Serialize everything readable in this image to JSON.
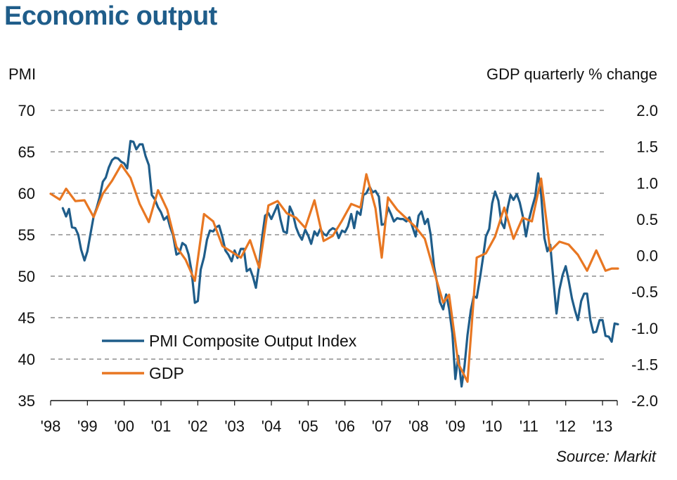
{
  "page": {
    "title": "Economic output",
    "source": "Source: Markit"
  },
  "chart_data": {
    "type": "line",
    "title": "Economic output",
    "left_axis": {
      "label": "PMI",
      "ticks": [
        35,
        40,
        45,
        50,
        55,
        60,
        65,
        70
      ],
      "range": [
        35,
        70
      ]
    },
    "right_axis": {
      "label": "GDP quarterly % change",
      "ticks": [
        "-2.0",
        "-1.5",
        "-1.0",
        "-0.5",
        "0.0",
        "0.5",
        "1.0",
        "1.5",
        "2.0"
      ],
      "range": [
        -2.0,
        2.0
      ]
    },
    "x_axis": {
      "ticks": [
        "'98",
        "'99",
        "'00",
        "'01",
        "'02",
        "'03",
        "'04",
        "'05",
        "'06",
        "'07",
        "'08",
        "'09",
        "'10",
        "'11",
        "'12",
        "'13"
      ],
      "range": [
        1998.0,
        2013.4
      ]
    },
    "grid": "horizontal dashed",
    "legend_position": "bottom-left",
    "series": [
      {
        "name": "PMI Composite Output Index",
        "axis": "left",
        "color": "#1f5d8a",
        "points": [
          [
            1998.33,
            58.2
          ],
          [
            1998.42,
            57.2
          ],
          [
            1998.5,
            58.1
          ],
          [
            1998.58,
            55.9
          ],
          [
            1998.67,
            55.8
          ],
          [
            1998.75,
            55.0
          ],
          [
            1998.83,
            53.2
          ],
          [
            1998.92,
            51.9
          ],
          [
            1999.0,
            53.0
          ],
          [
            1999.08,
            55.0
          ],
          [
            1999.17,
            57.2
          ],
          [
            1999.25,
            58.2
          ],
          [
            1999.33,
            59.5
          ],
          [
            1999.42,
            61.4
          ],
          [
            1999.5,
            61.9
          ],
          [
            1999.58,
            63.1
          ],
          [
            1999.67,
            64.0
          ],
          [
            1999.75,
            64.3
          ],
          [
            1999.83,
            64.2
          ],
          [
            1999.92,
            63.8
          ],
          [
            2000.0,
            63.6
          ],
          [
            2000.08,
            63.0
          ],
          [
            2000.17,
            66.3
          ],
          [
            2000.25,
            66.2
          ],
          [
            2000.33,
            65.3
          ],
          [
            2000.42,
            65.9
          ],
          [
            2000.5,
            65.9
          ],
          [
            2000.58,
            64.5
          ],
          [
            2000.67,
            63.4
          ],
          [
            2000.75,
            59.8
          ],
          [
            2000.83,
            59.3
          ],
          [
            2000.92,
            58.3
          ],
          [
            2001.0,
            57.7
          ],
          [
            2001.08,
            56.8
          ],
          [
            2001.17,
            57.2
          ],
          [
            2001.25,
            55.9
          ],
          [
            2001.33,
            54.9
          ],
          [
            2001.42,
            52.6
          ],
          [
            2001.5,
            52.8
          ],
          [
            2001.58,
            54.0
          ],
          [
            2001.67,
            53.7
          ],
          [
            2001.75,
            52.6
          ],
          [
            2001.83,
            50.6
          ],
          [
            2001.92,
            46.8
          ],
          [
            2002.0,
            47.0
          ],
          [
            2002.08,
            50.8
          ],
          [
            2002.17,
            52.3
          ],
          [
            2002.25,
            54.4
          ],
          [
            2002.33,
            55.5
          ],
          [
            2002.42,
            55.4
          ],
          [
            2002.5,
            55.9
          ],
          [
            2002.58,
            56.1
          ],
          [
            2002.67,
            54.7
          ],
          [
            2002.75,
            53.1
          ],
          [
            2002.83,
            52.6
          ],
          [
            2002.92,
            51.8
          ],
          [
            2003.0,
            53.1
          ],
          [
            2003.08,
            52.2
          ],
          [
            2003.17,
            53.3
          ],
          [
            2003.25,
            53.3
          ],
          [
            2003.33,
            50.6
          ],
          [
            2003.42,
            50.9
          ],
          [
            2003.5,
            49.9
          ],
          [
            2003.58,
            48.6
          ],
          [
            2003.67,
            51.5
          ],
          [
            2003.75,
            54.7
          ],
          [
            2003.83,
            57.3
          ],
          [
            2003.92,
            57.6
          ],
          [
            2004.0,
            56.9
          ],
          [
            2004.08,
            57.7
          ],
          [
            2004.17,
            58.6
          ],
          [
            2004.25,
            56.8
          ],
          [
            2004.33,
            55.4
          ],
          [
            2004.42,
            55.2
          ],
          [
            2004.5,
            58.4
          ],
          [
            2004.58,
            57.6
          ],
          [
            2004.67,
            55.9
          ],
          [
            2004.75,
            55.0
          ],
          [
            2004.83,
            54.4
          ],
          [
            2004.92,
            55.6
          ],
          [
            2005.0,
            54.9
          ],
          [
            2005.08,
            53.9
          ],
          [
            2005.17,
            55.4
          ],
          [
            2005.25,
            54.9
          ],
          [
            2005.33,
            55.7
          ],
          [
            2005.42,
            55.1
          ],
          [
            2005.5,
            54.9
          ],
          [
            2005.58,
            55.5
          ],
          [
            2005.67,
            55.8
          ],
          [
            2005.75,
            55.6
          ],
          [
            2005.83,
            54.6
          ],
          [
            2005.92,
            55.5
          ],
          [
            2006.0,
            55.3
          ],
          [
            2006.08,
            56.0
          ],
          [
            2006.17,
            57.5
          ],
          [
            2006.25,
            55.8
          ],
          [
            2006.33,
            57.8
          ],
          [
            2006.42,
            57.4
          ],
          [
            2006.5,
            59.8
          ],
          [
            2006.58,
            60.0
          ],
          [
            2006.67,
            60.8
          ],
          [
            2006.75,
            60.1
          ],
          [
            2006.83,
            60.3
          ],
          [
            2006.92,
            59.6
          ],
          [
            2007.0,
            56.2
          ],
          [
            2007.08,
            56.3
          ],
          [
            2007.17,
            58.3
          ],
          [
            2007.25,
            57.5
          ],
          [
            2007.33,
            56.6
          ],
          [
            2007.42,
            57.0
          ],
          [
            2007.5,
            56.9
          ],
          [
            2007.58,
            56.9
          ],
          [
            2007.67,
            56.6
          ],
          [
            2007.75,
            57.1
          ],
          [
            2007.83,
            56.0
          ],
          [
            2007.92,
            54.8
          ],
          [
            2008.0,
            57.3
          ],
          [
            2008.08,
            57.8
          ],
          [
            2008.17,
            56.3
          ],
          [
            2008.25,
            56.9
          ],
          [
            2008.33,
            55.0
          ],
          [
            2008.42,
            51.2
          ],
          [
            2008.5,
            49.3
          ],
          [
            2008.58,
            46.9
          ],
          [
            2008.67,
            46.0
          ],
          [
            2008.75,
            47.8
          ],
          [
            2008.83,
            46.1
          ],
          [
            2008.92,
            43.1
          ],
          [
            2009.0,
            37.6
          ],
          [
            2009.08,
            40.4
          ],
          [
            2009.17,
            36.7
          ],
          [
            2009.25,
            39.2
          ],
          [
            2009.33,
            42.9
          ],
          [
            2009.42,
            45.9
          ],
          [
            2009.5,
            47.6
          ],
          [
            2009.58,
            47.4
          ],
          [
            2009.67,
            49.8
          ],
          [
            2009.75,
            52.2
          ],
          [
            2009.83,
            54.8
          ],
          [
            2009.92,
            55.7
          ],
          [
            2010.0,
            58.8
          ],
          [
            2010.08,
            60.2
          ],
          [
            2010.17,
            59.1
          ],
          [
            2010.25,
            56.5
          ],
          [
            2010.33,
            55.8
          ],
          [
            2010.42,
            58.2
          ],
          [
            2010.5,
            59.8
          ],
          [
            2010.58,
            59.2
          ],
          [
            2010.67,
            59.9
          ],
          [
            2010.75,
            58.9
          ],
          [
            2010.83,
            57.3
          ],
          [
            2010.92,
            54.8
          ],
          [
            2011.0,
            56.8
          ],
          [
            2011.08,
            58.2
          ],
          [
            2011.17,
            59.6
          ],
          [
            2011.25,
            62.4
          ],
          [
            2011.33,
            59.9
          ],
          [
            2011.42,
            54.6
          ],
          [
            2011.5,
            53.0
          ],
          [
            2011.58,
            53.8
          ],
          [
            2011.67,
            49.2
          ],
          [
            2011.75,
            45.5
          ],
          [
            2011.83,
            48.4
          ],
          [
            2011.92,
            50.2
          ],
          [
            2012.0,
            51.2
          ],
          [
            2012.08,
            49.5
          ],
          [
            2012.17,
            47.3
          ],
          [
            2012.25,
            45.9
          ],
          [
            2012.33,
            44.7
          ],
          [
            2012.42,
            47.0
          ],
          [
            2012.5,
            47.9
          ],
          [
            2012.58,
            47.9
          ],
          [
            2012.67,
            44.7
          ],
          [
            2012.75,
            43.2
          ],
          [
            2012.83,
            43.3
          ],
          [
            2012.92,
            44.7
          ],
          [
            2013.0,
            44.7
          ],
          [
            2013.08,
            42.8
          ],
          [
            2013.17,
            42.7
          ],
          [
            2013.25,
            42.1
          ],
          [
            2013.33,
            44.3
          ],
          [
            2013.42,
            44.2
          ]
        ]
      },
      {
        "name": "GDP",
        "axis": "right",
        "color": "#e87722",
        "points": [
          [
            1998.0,
            0.85
          ],
          [
            1998.25,
            0.77
          ],
          [
            1998.42,
            0.92
          ],
          [
            1998.67,
            0.75
          ],
          [
            1998.92,
            0.76
          ],
          [
            1999.17,
            0.53
          ],
          [
            1999.42,
            0.85
          ],
          [
            1999.67,
            1.03
          ],
          [
            1999.92,
            1.25
          ],
          [
            2000.17,
            1.07
          ],
          [
            2000.42,
            0.71
          ],
          [
            2000.67,
            0.46
          ],
          [
            2000.92,
            0.9
          ],
          [
            2001.17,
            0.63
          ],
          [
            2001.42,
            0.12
          ],
          [
            2001.67,
            -0.06
          ],
          [
            2001.92,
            -0.35
          ],
          [
            2002.17,
            0.57
          ],
          [
            2002.42,
            0.47
          ],
          [
            2002.67,
            0.13
          ],
          [
            2002.92,
            0.05
          ],
          [
            2003.17,
            -0.03
          ],
          [
            2003.42,
            0.21
          ],
          [
            2003.67,
            -0.17
          ],
          [
            2003.92,
            0.69
          ],
          [
            2004.17,
            0.75
          ],
          [
            2004.42,
            0.58
          ],
          [
            2004.67,
            0.52
          ],
          [
            2004.92,
            0.38
          ],
          [
            2005.17,
            0.76
          ],
          [
            2005.42,
            0.2
          ],
          [
            2005.67,
            0.27
          ],
          [
            2005.92,
            0.48
          ],
          [
            2006.17,
            0.71
          ],
          [
            2006.42,
            0.66
          ],
          [
            2006.58,
            1.12
          ],
          [
            2006.83,
            0.65
          ],
          [
            2007.0,
            -0.03
          ],
          [
            2007.17,
            0.8
          ],
          [
            2007.42,
            0.63
          ],
          [
            2007.67,
            0.51
          ],
          [
            2007.92,
            0.39
          ],
          [
            2008.17,
            0.23
          ],
          [
            2008.42,
            -0.22
          ],
          [
            2008.67,
            -0.65
          ],
          [
            2008.83,
            -0.54
          ],
          [
            2009.08,
            -1.49
          ],
          [
            2009.33,
            -1.74
          ],
          [
            2009.58,
            -0.03
          ],
          [
            2009.83,
            0.03
          ],
          [
            2010.08,
            0.26
          ],
          [
            2010.33,
            0.66
          ],
          [
            2010.58,
            0.23
          ],
          [
            2010.83,
            0.52
          ],
          [
            2011.08,
            0.47
          ],
          [
            2011.33,
            1.06
          ],
          [
            2011.58,
            0.06
          ],
          [
            2011.83,
            0.19
          ],
          [
            2012.08,
            0.15
          ],
          [
            2012.33,
            0.01
          ],
          [
            2012.58,
            -0.21
          ],
          [
            2012.83,
            0.07
          ],
          [
            2013.08,
            -0.21
          ],
          [
            2013.25,
            -0.18
          ],
          [
            2013.42,
            -0.18
          ]
        ]
      }
    ]
  }
}
